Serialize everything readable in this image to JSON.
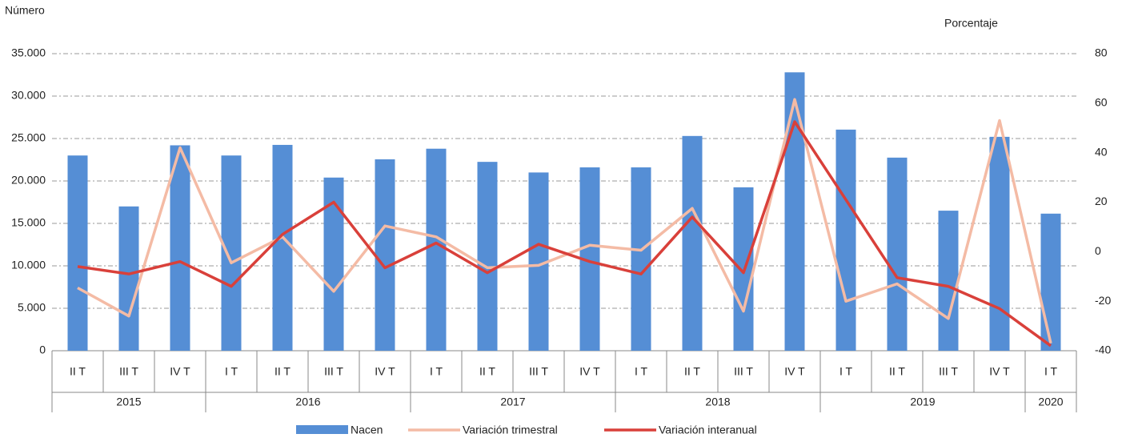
{
  "chart_data": {
    "type": "bar-line",
    "y_label": "Número",
    "y2_label": "Porcentaje",
    "groups": [
      {
        "name": "2015",
        "categories": [
          "II T",
          "III T",
          "IV T"
        ]
      },
      {
        "name": "2016",
        "categories": [
          "I T",
          "II T",
          "III T",
          "IV T"
        ]
      },
      {
        "name": "2017",
        "categories": [
          "I T",
          "II T",
          "III T",
          "IV T"
        ]
      },
      {
        "name": "2018",
        "categories": [
          "I T",
          "II T",
          "III T",
          "IV T"
        ]
      },
      {
        "name": "2019",
        "categories": [
          "I T",
          "II T",
          "III T",
          "IV T"
        ]
      },
      {
        "name": "2020",
        "categories": [
          "I T"
        ]
      }
    ],
    "series": [
      {
        "name": "Nacen",
        "type": "bar",
        "color": "#558ed5",
        "values": [
          23000,
          17000,
          24200,
          23000,
          24250,
          20400,
          22550,
          23800,
          22250,
          21000,
          21600,
          21600,
          25300,
          19250,
          32800,
          26050,
          22750,
          16500,
          25200,
          16150
        ]
      },
      {
        "name": "Variación trimestral",
        "type": "line",
        "axis": "y2",
        "color": "#f4bba5",
        "values": [
          -14.6,
          -26,
          42,
          -4.5,
          6,
          -16,
          10.4,
          6,
          -6.5,
          -5.5,
          2.6,
          0.6,
          17.5,
          -24,
          61.5,
          -20,
          -13,
          -27,
          53,
          -37
        ]
      },
      {
        "name": "Variación interanual",
        "type": "line",
        "axis": "y2",
        "color": "#d9403a",
        "values": [
          -6,
          -9,
          -4,
          -14,
          7,
          20,
          -6.5,
          3.5,
          -8.5,
          3,
          -4,
          -9,
          14,
          -8.5,
          52.5,
          21,
          -10.5,
          -14,
          -23,
          -38
        ]
      }
    ],
    "ylim": [
      0,
      35000
    ],
    "yticks": [
      0,
      {
        "value": 5000,
        "label": "5.000"
      },
      {
        "value": 10000,
        "label": "10.000"
      },
      {
        "value": 15000,
        "label": "15.000"
      },
      {
        "value": 20000,
        "label": "20.000"
      },
      {
        "value": 25000,
        "label": "25.000"
      },
      {
        "value": 30000,
        "label": "30.000"
      },
      {
        "value": 35000,
        "label": "35.000"
      }
    ],
    "y2lim": [
      -40,
      80
    ],
    "y2ticks": [
      -40,
      -20,
      0,
      20,
      40,
      60,
      80
    ],
    "grid": true
  }
}
